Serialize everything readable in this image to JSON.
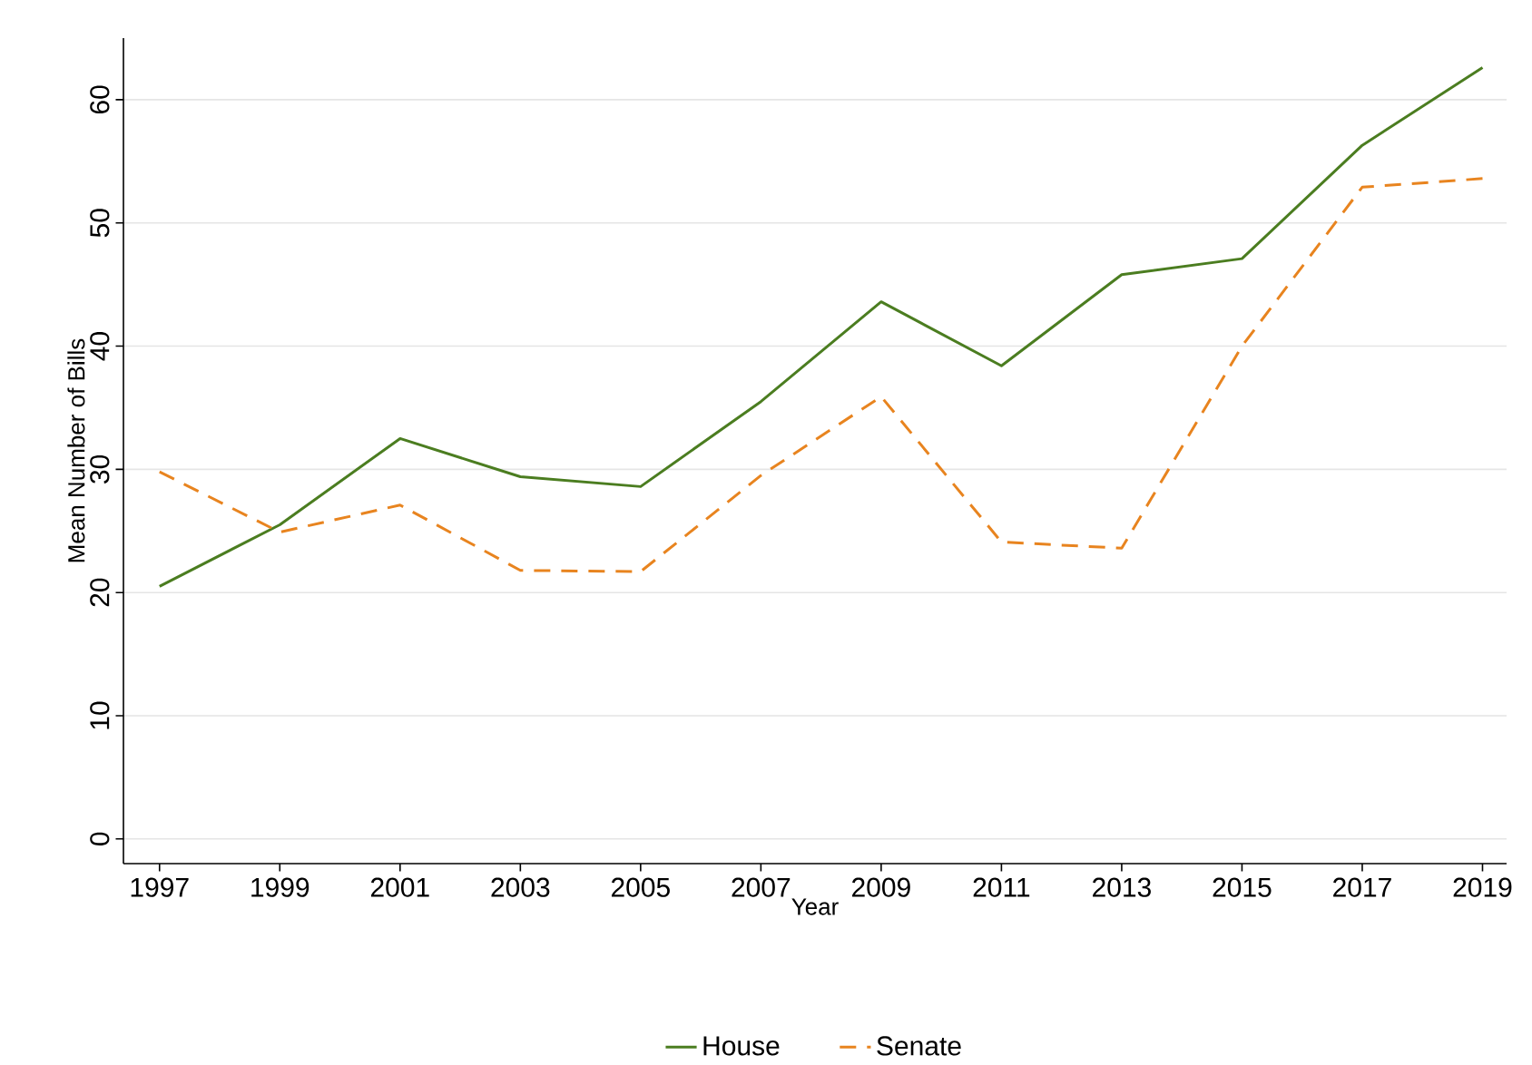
{
  "chart_data": {
    "type": "line",
    "xlabel": "Year",
    "ylabel": "Mean Number of Bills",
    "x": [
      1997,
      1999,
      2001,
      2003,
      2005,
      2007,
      2009,
      2011,
      2013,
      2015,
      2017,
      2019
    ],
    "xlim": [
      1996.4,
      2019.4
    ],
    "xticks": [
      1997,
      1999,
      2001,
      2003,
      2005,
      2007,
      2009,
      2011,
      2013,
      2015,
      2017,
      2019
    ],
    "ylim": [
      -2,
      65
    ],
    "yticks": [
      0,
      10,
      20,
      30,
      40,
      50,
      60
    ],
    "grid": "y",
    "legend": "bottom",
    "series": [
      {
        "name": "House",
        "color": "#4b7d20",
        "line_style": "solid",
        "values": [
          20.5,
          25.5,
          32.5,
          29.4,
          28.6,
          35.5,
          43.6,
          38.4,
          45.8,
          47.1,
          56.3,
          62.6
        ]
      },
      {
        "name": "Senate",
        "color": "#e8841f",
        "line_style": "dashed",
        "values": [
          29.8,
          24.9,
          27.1,
          21.8,
          21.7,
          29.5,
          35.9,
          24.1,
          23.6,
          40.0,
          52.9,
          53.6
        ]
      }
    ]
  }
}
